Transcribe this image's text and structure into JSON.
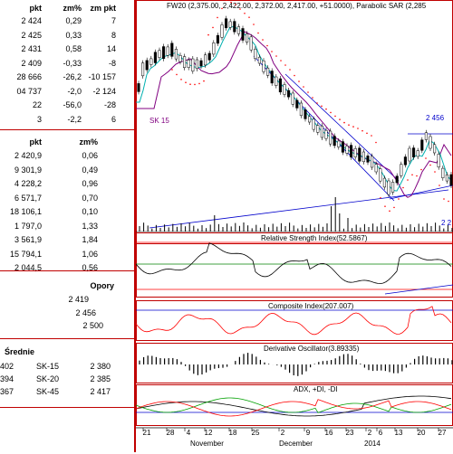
{
  "table1": {
    "headers": [
      "pkt",
      "zm%",
      "zm pkt"
    ],
    "rows": [
      [
        "2 424",
        "0,29",
        "7"
      ],
      [
        "2 425",
        "0,33",
        "8"
      ],
      [
        "2 431",
        "0,58",
        "14"
      ],
      [
        "2 409",
        "-0,33",
        "-8"
      ],
      [
        "28 666",
        "-26,2",
        "-10 157"
      ],
      [
        "04 737",
        "-2,0",
        "-2 124"
      ],
      [
        "22",
        "-56,0",
        "-28"
      ],
      [
        "3",
        "-2,2",
        "6"
      ]
    ]
  },
  "table2": {
    "headers": [
      "pkt",
      "zm%"
    ],
    "rows": [
      [
        "2 420,9",
        "0,06"
      ],
      [
        "9 301,9",
        "0,49"
      ],
      [
        "4 228,2",
        "0,96"
      ],
      [
        "6 571,7",
        "0,70"
      ],
      [
        "18 106,1",
        "0,10"
      ],
      [
        "1 797,0",
        "1,33"
      ],
      [
        "3 561,9",
        "1,84"
      ],
      [
        "15 794,1",
        "1,06"
      ],
      [
        "2 044,5",
        "0,56"
      ]
    ]
  },
  "opory": {
    "title": "Opory",
    "values": [
      "2 419",
      "2 456",
      "2 500"
    ]
  },
  "srednie": {
    "title": "Średnie",
    "rows": [
      [
        "402",
        "SK-15",
        "2 380"
      ],
      [
        "394",
        "SK-20",
        "2 385"
      ],
      [
        "367",
        "SK-45",
        "2 417"
      ]
    ]
  },
  "chart": {
    "title": "FW20 (2,375.00, 2,422.00, 2,372.00, 2,417.00, +51.0000), Parabolic SAR (2,285",
    "label_sk15": "SK 15",
    "label_2456": "2 456",
    "label_22": "2 2",
    "rsi_label": "Relative Strength Index(52.5867)",
    "composite_label": "Composite Index(207.007)",
    "derivative_label": "Derivative Oscillator(3.89335)",
    "adx_label": "ADX, +DI, -DI",
    "x_days": [
      "21",
      "28",
      "4",
      "12",
      "18",
      "25",
      "2",
      "9",
      "16",
      "23",
      "2",
      "6",
      "13",
      "20",
      "27"
    ],
    "x_months": [
      "November",
      "December",
      "2014"
    ],
    "colors": {
      "frame": "#c00000",
      "price": "#000000",
      "ma_short": "#00b0b0",
      "ma_long": "#800080",
      "sar": "#ff0000",
      "trend": "#0000cc",
      "rsi_band": "#008000",
      "composite": "#ff0000",
      "plus_di": "#00a000",
      "minus_di": "#ff0000"
    }
  },
  "chart_data": {
    "type": "line",
    "title": "FW20 (2,375.00, 2,422.00, 2,372.00, 2,417.00, +51.0000), Parabolic SAR (2,285",
    "x": [
      "21",
      "28",
      "4",
      "12",
      "18",
      "25",
      "2",
      "9",
      "16",
      "23",
      "2",
      "6",
      "13",
      "20",
      "27"
    ],
    "series": [
      {
        "name": "FW20",
        "values": [
          2330,
          2390,
          2440,
          2420,
          2500,
          2480,
          2380,
          2320,
          2260,
          2210,
          2250,
          2400,
          2440,
          2330,
          2417
        ]
      },
      {
        "name": "Relative Strength Index(52.5867)",
        "values": [
          60,
          45,
          55,
          50,
          65,
          52,
          40,
          35,
          38,
          30,
          35,
          55,
          58,
          42,
          52.5867
        ]
      },
      {
        "name": "Composite Index(207.007)",
        "values": [
          150,
          50,
          100,
          80,
          200,
          120,
          -50,
          -100,
          -80,
          -150,
          -100,
          180,
          210,
          20,
          207.007
        ]
      },
      {
        "name": "Derivative Oscillator(3.89335)",
        "values": [
          5,
          -3,
          4,
          -2,
          6,
          -4,
          -6,
          -5,
          3,
          5,
          -4,
          6,
          5,
          -5,
          3.89335
        ]
      }
    ]
  }
}
